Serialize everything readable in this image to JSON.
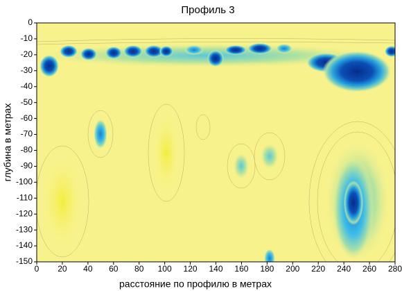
{
  "chart_data": {
    "type": "contour",
    "title": "Профиль 3",
    "x_label": "расстояние по профилю в метрах",
    "y_label": "глубина в метрах",
    "xlim": [
      0,
      280
    ],
    "ylim": [
      -150,
      0
    ],
    "xticks": [
      0,
      20,
      40,
      60,
      80,
      100,
      120,
      140,
      160,
      180,
      200,
      220,
      240,
      260,
      280
    ],
    "yticks": [
      0,
      -10,
      -20,
      -30,
      -40,
      -50,
      -60,
      -70,
      -80,
      -90,
      -100,
      -110,
      -120,
      -130,
      -140,
      -150
    ],
    "background_color": "#f8f28c"
  }
}
